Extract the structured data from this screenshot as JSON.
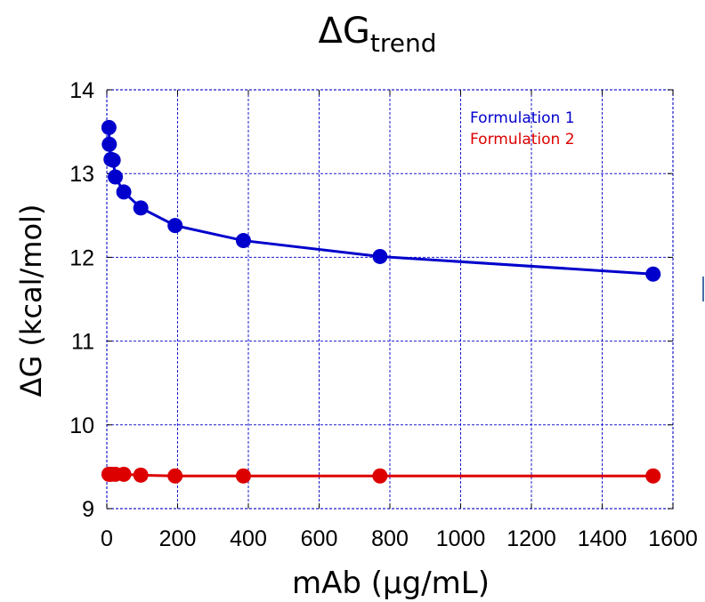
{
  "chart_data": {
    "type": "line",
    "title": "ΔG",
    "title_subscript": "trend",
    "xlabel": "mAb (µg/mL)",
    "ylabel": "ΔG (kcal/mol)",
    "xlim": [
      0,
      1600
    ],
    "ylim": [
      9,
      14
    ],
    "xticks": [
      0,
      200,
      400,
      600,
      800,
      1000,
      1200,
      1400,
      1600
    ],
    "yticks": [
      9,
      10,
      11,
      12,
      13,
      14
    ],
    "grid": true,
    "legend_position": "top-right",
    "series": [
      {
        "name": "Formulation 1",
        "color": "#0000cc",
        "x": [
          6,
          7,
          12,
          18,
          24,
          48,
          96,
          193,
          386,
          772,
          1544
        ],
        "y": [
          13.55,
          13.35,
          13.17,
          13.16,
          12.96,
          12.78,
          12.59,
          12.38,
          12.2,
          12.01,
          11.8
        ]
      },
      {
        "name": "Formulation 2",
        "color": "#dd0000",
        "x": [
          6,
          12,
          24,
          48,
          96,
          193,
          386,
          772,
          1544
        ],
        "y": [
          9.41,
          9.41,
          9.41,
          9.41,
          9.4,
          9.39,
          9.39,
          9.39,
          9.39
        ]
      }
    ]
  }
}
